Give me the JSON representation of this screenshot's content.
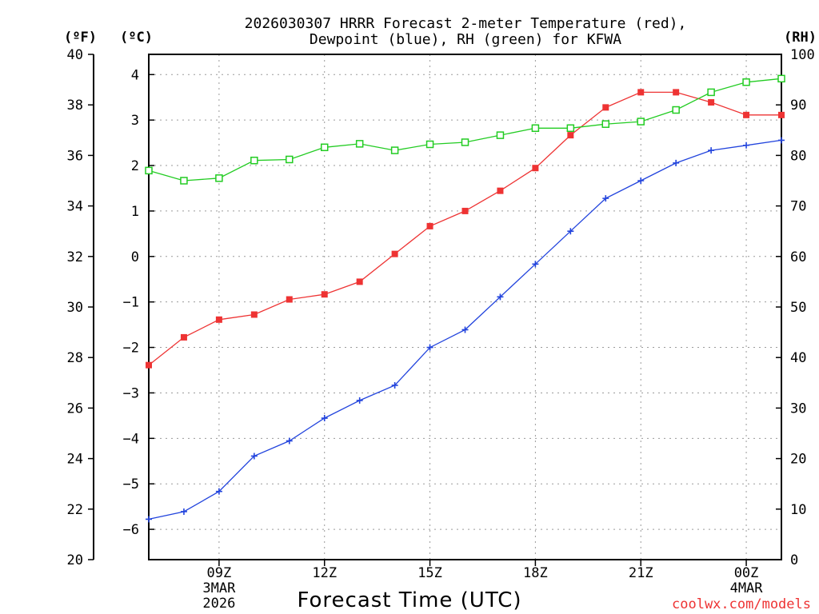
{
  "chart_data": {
    "type": "line",
    "title_line1": "2026030307 HRRR Forecast 2-meter Temperature (red),",
    "title_line2": "Dewpoint (blue), RH (green) for KFWA",
    "xlabel": "Forecast Time (UTC)",
    "credit": "coolwx.com/models",
    "unit_f": "(ºF)",
    "unit_c": "(ºC)",
    "unit_rh": "(RH)",
    "x_hours": [
      7,
      8,
      9,
      10,
      11,
      12,
      13,
      14,
      15,
      16,
      17,
      18,
      19,
      20,
      21,
      22,
      23,
      24,
      25
    ],
    "xlim": [
      7,
      25
    ],
    "x_ticks": [
      {
        "hour": 9,
        "label": "09Z",
        "sub1": "3MAR",
        "sub2": "2026"
      },
      {
        "hour": 12,
        "label": "12Z",
        "sub1": "",
        "sub2": ""
      },
      {
        "hour": 15,
        "label": "15Z",
        "sub1": "",
        "sub2": ""
      },
      {
        "hour": 18,
        "label": "18Z",
        "sub1": "",
        "sub2": ""
      },
      {
        "hour": 21,
        "label": "21Z",
        "sub1": "",
        "sub2": ""
      },
      {
        "hour": 24,
        "label": "00Z",
        "sub1": "4MAR",
        "sub2": ""
      }
    ],
    "left_f_axis": {
      "min": 20,
      "max": 40,
      "ticks": [
        "20",
        "22",
        "24",
        "26",
        "28",
        "30",
        "32",
        "34",
        "36",
        "38",
        "40"
      ]
    },
    "celsius_axis": {
      "ticks": [
        "-6",
        "-5",
        "-4",
        "-3",
        "-2",
        "-1",
        "0",
        "1",
        "2",
        "3",
        "4"
      ]
    },
    "rh_axis": {
      "min": 0,
      "max": 100,
      "ticks": [
        "0",
        "10",
        "20",
        "30",
        "40",
        "50",
        "60",
        "70",
        "80",
        "90",
        "100"
      ]
    },
    "series": [
      {
        "name": "2-meter Temperature",
        "axis": "F",
        "color": "#ee3333",
        "marker": "filled-square",
        "values": [
          27.7,
          28.8,
          29.5,
          29.7,
          30.3,
          30.5,
          31.0,
          32.1,
          33.2,
          33.8,
          34.6,
          35.5,
          36.8,
          37.9,
          38.5,
          38.5,
          38.1,
          37.6,
          37.6
        ]
      },
      {
        "name": "Dewpoint",
        "axis": "F",
        "color": "#2244dd",
        "marker": "plus",
        "values": [
          21.6,
          21.9,
          22.7,
          24.1,
          24.7,
          25.6,
          26.3,
          26.9,
          28.4,
          29.1,
          30.4,
          31.7,
          33.0,
          34.3,
          35.0,
          35.7,
          36.2,
          36.4,
          36.6
        ]
      },
      {
        "name": "RH",
        "axis": "RH",
        "color": "#22cc22",
        "marker": "open-square",
        "values": [
          77,
          75,
          75.5,
          79,
          79.2,
          81.6,
          82.3,
          81,
          82.2,
          82.6,
          84,
          85.4,
          85.4,
          86.2,
          86.7,
          89,
          92.5,
          94.5,
          95.2
        ]
      }
    ]
  }
}
